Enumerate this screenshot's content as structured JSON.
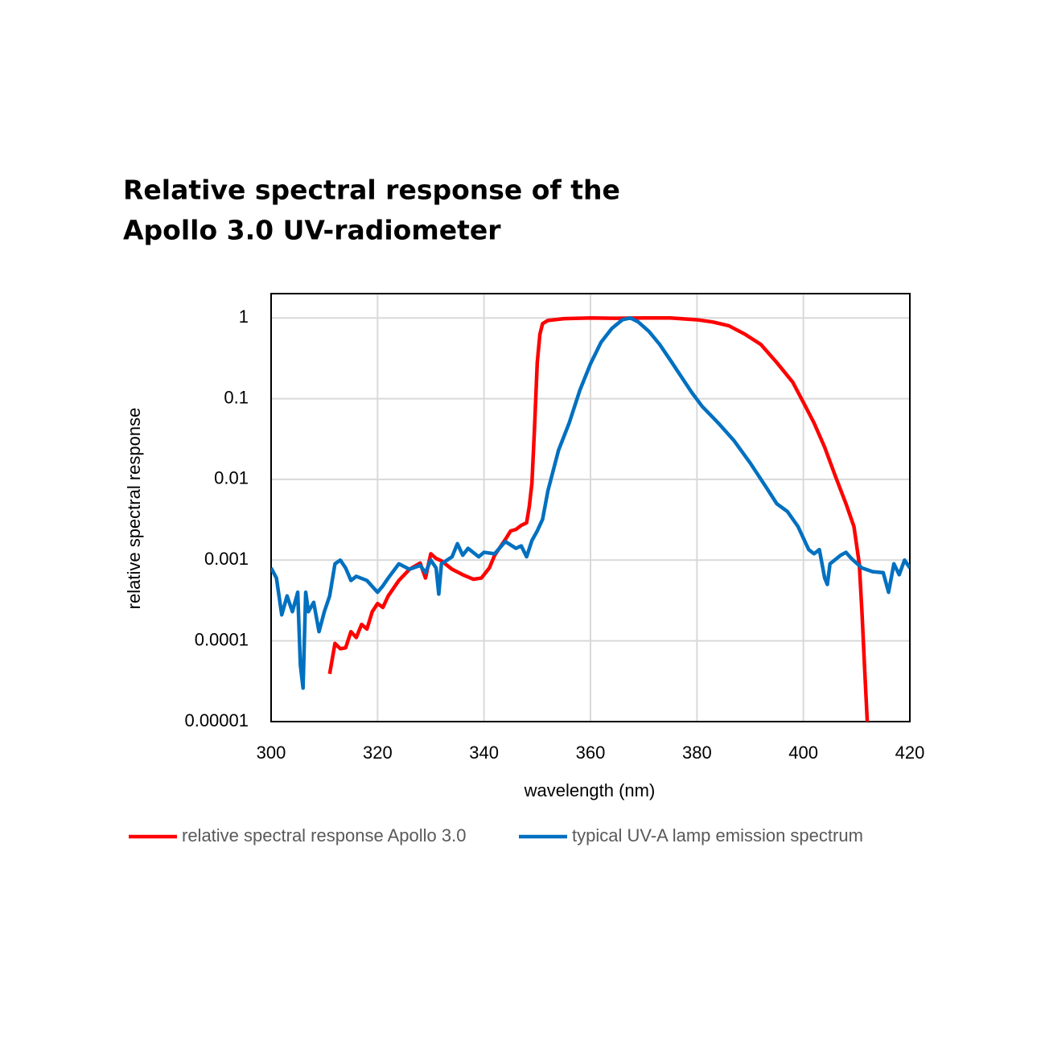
{
  "chart_data": {
    "type": "line",
    "title": [
      "Relative spectral response of the",
      "Apollo 3.0 UV-radiometer"
    ],
    "xlabel": "wavelength (nm)",
    "ylabel": "relative spectral response",
    "xlim": [
      300,
      420
    ],
    "xticks": [
      300,
      320,
      340,
      360,
      380,
      400,
      420
    ],
    "ylim": [
      1e-05,
      2
    ],
    "yticks": [
      1,
      0.1,
      0.01,
      0.001,
      0.0001,
      {
        "value": 1e-05,
        "label": "0.00001"
      }
    ],
    "log_y": true,
    "grid": true,
    "legend": "bottom",
    "series": [
      {
        "name": "relative spectral response Apollo 3.0",
        "color": "#ff0000",
        "x": [
          311,
          312,
          313,
          314,
          315,
          316,
          317,
          318,
          319,
          320,
          321,
          322,
          324,
          326,
          328,
          329,
          330,
          331,
          332,
          334,
          336,
          338,
          339.5,
          341,
          342,
          344,
          345,
          346,
          347,
          348,
          348.5,
          349,
          349.5,
          350,
          350.5,
          351,
          352,
          355,
          360,
          365,
          370,
          375,
          380,
          383,
          386,
          389,
          392,
          395,
          398,
          400,
          402,
          404,
          406,
          408,
          409.5,
          410.5,
          411,
          411.5,
          412
        ],
        "values": [
          3.9e-05,
          9.3e-05,
          8e-05,
          8.2e-05,
          0.00013,
          0.00011,
          0.00016,
          0.00014,
          0.00023,
          0.00029,
          0.00026,
          0.00036,
          0.00056,
          0.00077,
          0.00092,
          0.0006,
          0.0012,
          0.00105,
          0.00098,
          0.00077,
          0.00066,
          0.00058,
          0.0006,
          0.0008,
          0.00115,
          0.0018,
          0.0023,
          0.0024,
          0.0027,
          0.0029,
          0.0046,
          0.009,
          0.045,
          0.28,
          0.63,
          0.85,
          0.93,
          0.98,
          1,
          0.99,
          1,
          1,
          0.95,
          0.89,
          0.8,
          0.63,
          0.47,
          0.28,
          0.16,
          0.09,
          0.05,
          0.025,
          0.011,
          0.005,
          0.0026,
          0.0009,
          0.00023,
          4.6e-05,
          1e-05
        ]
      },
      {
        "name": "typical UV-A lamp emission spectrum",
        "color": "#0070c0",
        "x": [
          300,
          301,
          302,
          303,
          304,
          305,
          305.5,
          306,
          306.5,
          307,
          308,
          309,
          310,
          311,
          312,
          313,
          314,
          315,
          316,
          318,
          320,
          321,
          322,
          324,
          326,
          328,
          329,
          330,
          331,
          331.5,
          332,
          334,
          335,
          336,
          337,
          339,
          340,
          342,
          344,
          346,
          347,
          348,
          349,
          350,
          351,
          352,
          354,
          356,
          358,
          360,
          362,
          364,
          366,
          367.5,
          369,
          371,
          373,
          375,
          377,
          379,
          381,
          384,
          387,
          390,
          393,
          395,
          397,
          399,
          401,
          402,
          403,
          404,
          404.5,
          405,
          407,
          408,
          409,
          411,
          413,
          415,
          416,
          417,
          418,
          419,
          420
        ],
        "values": [
          0.0008,
          0.0006,
          0.00021,
          0.00036,
          0.00023,
          0.0004,
          5e-05,
          2.6e-05,
          0.0004,
          0.00023,
          0.0003,
          0.00013,
          0.00023,
          0.00036,
          0.0009,
          0.001,
          0.0008,
          0.00056,
          0.00063,
          0.00056,
          0.0004,
          0.00048,
          0.0006,
          0.0009,
          0.00077,
          0.00086,
          0.0007,
          0.001,
          0.0008,
          0.00038,
          0.0009,
          0.0011,
          0.0016,
          0.00115,
          0.0014,
          0.0011,
          0.00125,
          0.0012,
          0.0017,
          0.0014,
          0.0015,
          0.0011,
          0.00175,
          0.0023,
          0.0032,
          0.0072,
          0.023,
          0.05,
          0.127,
          0.27,
          0.5,
          0.74,
          0.95,
          1,
          0.89,
          0.68,
          0.47,
          0.3,
          0.19,
          0.12,
          0.08,
          0.05,
          0.03,
          0.016,
          0.008,
          0.005,
          0.004,
          0.0026,
          0.00135,
          0.0012,
          0.00135,
          0.0006,
          0.0005,
          0.0009,
          0.00115,
          0.00125,
          0.00105,
          0.0008,
          0.00072,
          0.0007,
          0.0004,
          0.0009,
          0.00066,
          0.001,
          0.0008
        ]
      }
    ]
  }
}
